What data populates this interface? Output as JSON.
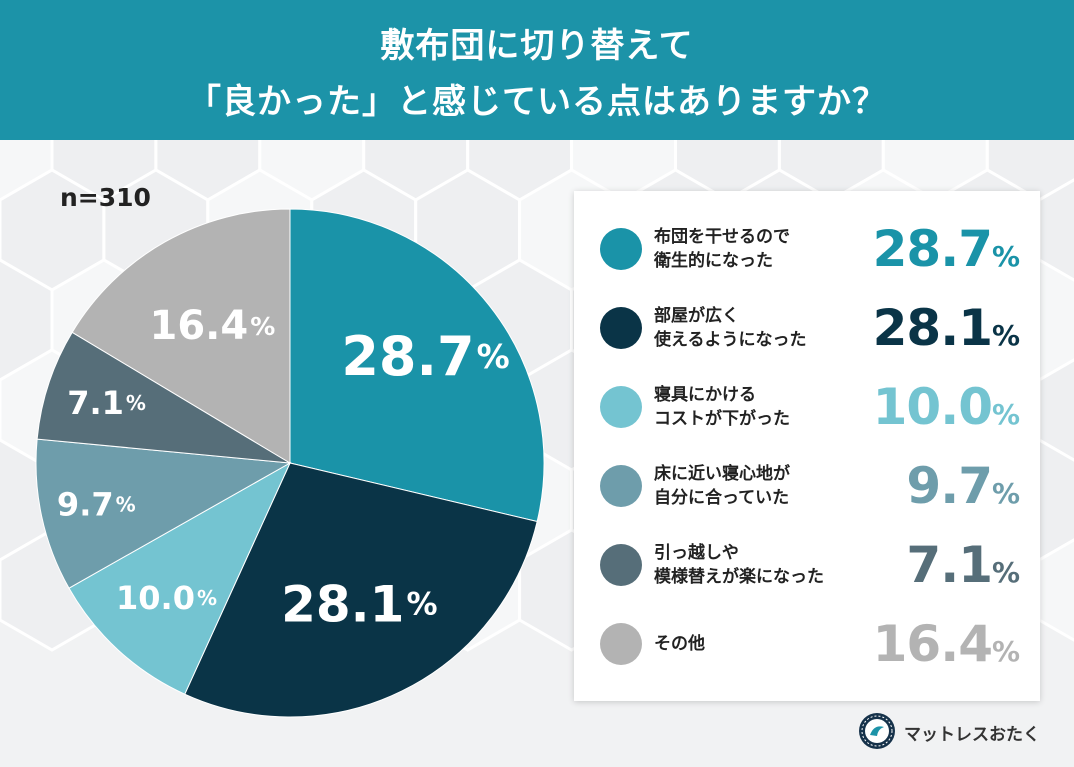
{
  "header": {
    "title_line1": "敷布団に切り替えて",
    "title_line2": "「良かった」と感じている点はありますか？"
  },
  "sample_size": "n=310",
  "colors": {
    "header_bg": "#1c93a8",
    "series": [
      "#1a93a8",
      "#0a3447",
      "#74c4d1",
      "#6e9dab",
      "#566e79",
      "#b3b3b3"
    ]
  },
  "chart_data": {
    "type": "pie",
    "categories": [
      "布団を干せるので\n衛生的になった",
      "部屋が広く\n使えるようになった",
      "寝具にかける\nコストが下がった",
      "床に近い寝心地が\n自分に合っていた",
      "引っ越しや\n模様替えが楽になった",
      "その他"
    ],
    "values": [
      28.7,
      28.1,
      10.0,
      9.7,
      7.1,
      16.4
    ],
    "labels": [
      "28.7",
      "28.1",
      "10.0",
      "9.7",
      "7.1",
      "16.4"
    ],
    "unit": "%",
    "legend_position": "right"
  },
  "brand": {
    "name": "マットレスおたく"
  }
}
